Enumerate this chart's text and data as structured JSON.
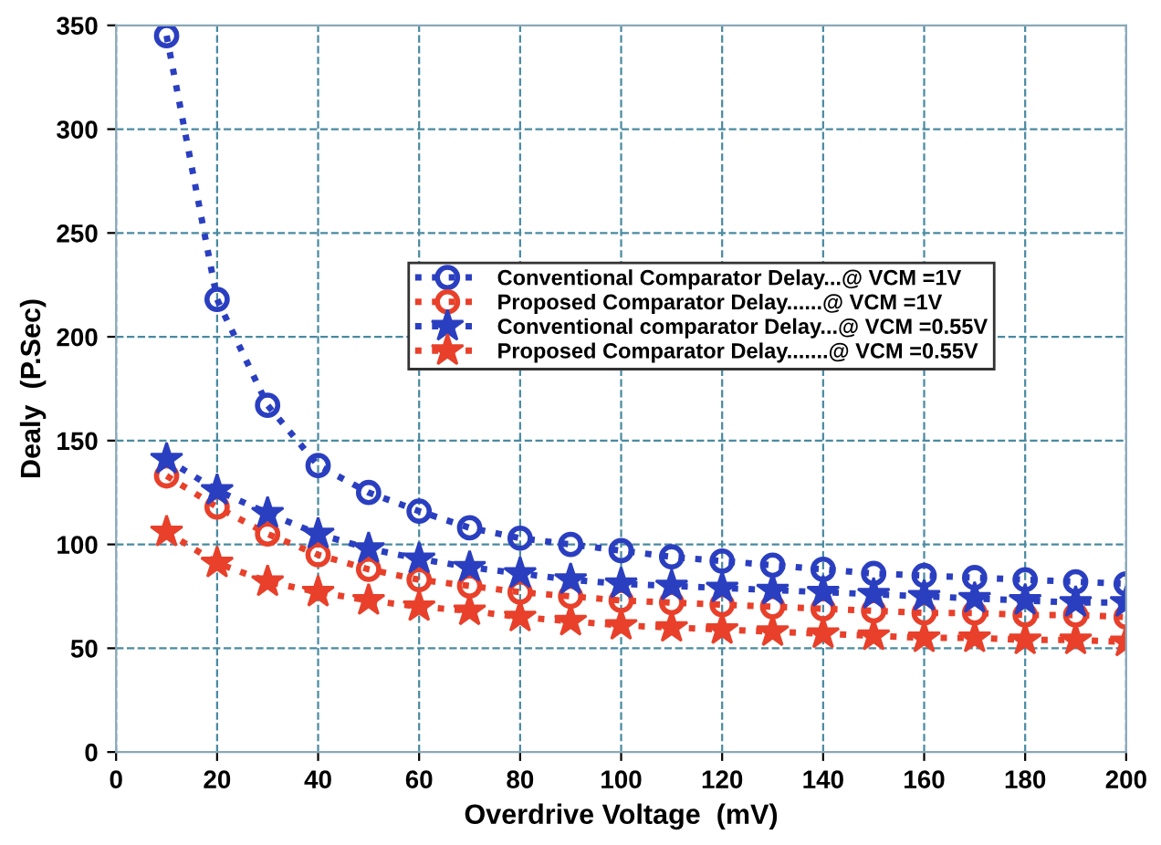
{
  "chart_data": {
    "type": "line",
    "xlabel": "Overdrive Voltage  (mV)",
    "ylabel": "Dealy  (P.Sec)",
    "x": [
      10,
      20,
      30,
      40,
      50,
      60,
      70,
      80,
      90,
      100,
      110,
      120,
      130,
      140,
      150,
      160,
      170,
      180,
      190,
      200
    ],
    "series": [
      {
        "name": "Conventional Comparator Delay...@ VCM =1V",
        "color": "#2a3fc0",
        "marker": "circle",
        "values": [
          345,
          218,
          167,
          138,
          125,
          116,
          108,
          103,
          100,
          97,
          94,
          92,
          90,
          88,
          86,
          85,
          84,
          83,
          82,
          81
        ]
      },
      {
        "name": "Proposed Comparator Delay......@ VCM =1V",
        "color": "#e8402a",
        "marker": "circle",
        "values": [
          133,
          118,
          105,
          95,
          88,
          83,
          80,
          77,
          75,
          73,
          72,
          71,
          70,
          69,
          68,
          67,
          67,
          66,
          66,
          65
        ]
      },
      {
        "name": "Conventional comparator Delay...@ VCM =0.55V",
        "color": "#2a3fc0",
        "marker": "star",
        "values": [
          141,
          126,
          115,
          105,
          98,
          93,
          89,
          86,
          83,
          81,
          80,
          79,
          78,
          77,
          76,
          75,
          74,
          73,
          72,
          72
        ]
      },
      {
        "name": "Proposed Comparator Delay.......@ VCM =0.55V",
        "color": "#e8402a",
        "marker": "star",
        "values": [
          106,
          91,
          82,
          77,
          73,
          70,
          68,
          65,
          63,
          61,
          60,
          59,
          58,
          57,
          56,
          55,
          55,
          54,
          54,
          53
        ]
      }
    ],
    "line_style": "dotted",
    "xlim": [
      0,
      200
    ],
    "ylim": [
      0,
      350
    ],
    "xticks": [
      0,
      20,
      40,
      60,
      80,
      100,
      120,
      140,
      160,
      180,
      200
    ],
    "yticks": [
      0,
      50,
      100,
      150,
      200,
      250,
      300,
      350
    ],
    "grid": true,
    "legend": "center right"
  }
}
